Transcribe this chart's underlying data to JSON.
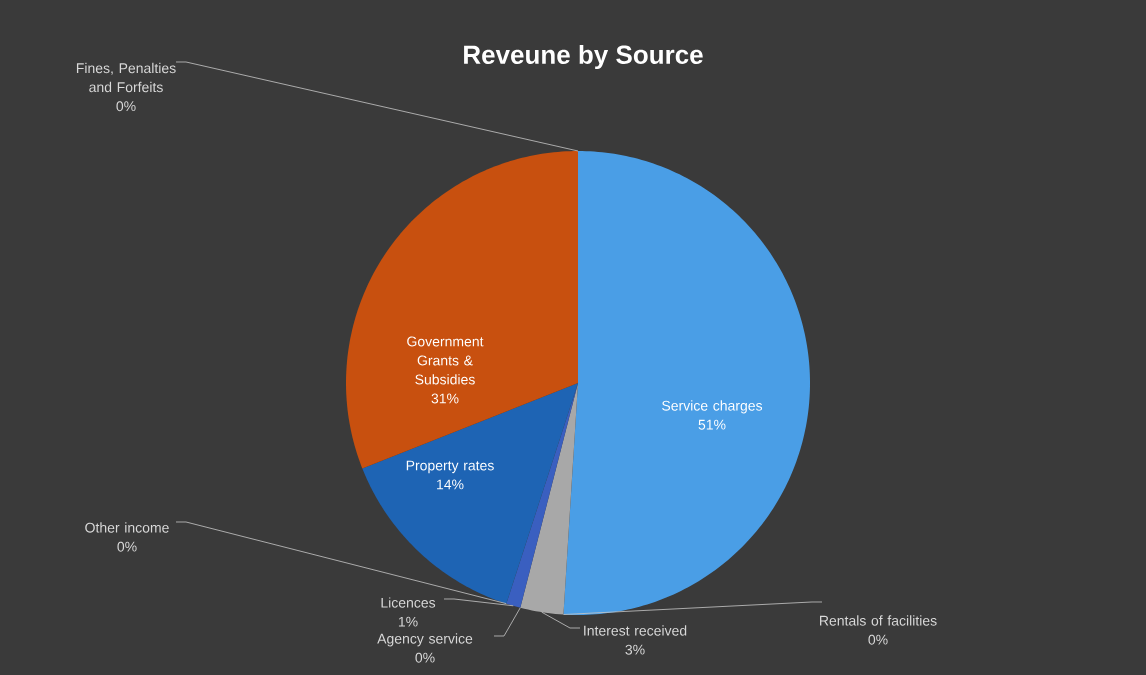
{
  "chart_data": {
    "type": "pie",
    "title": "Reveune by Source",
    "categories": [
      "Service charges",
      "Rentals of facilities",
      "Interest received",
      "Agency service",
      "Licences",
      "Other income",
      "Property rates",
      "Government Grants & Subsidies",
      "Fines, Penalties and Forfeits"
    ],
    "values": [
      51,
      0,
      3,
      0,
      1,
      0,
      14,
      31,
      0
    ],
    "value_labels": [
      "51%",
      "0%",
      "3%",
      "0%",
      "1%",
      "0%",
      "14%",
      "31%",
      "0%"
    ],
    "colors": [
      "#4a9ee6",
      "#9e480e",
      "#a8a8a8",
      "#264478",
      "#3a5fc0",
      "#5aa02c",
      "#1e64b4",
      "#c8500f",
      "#ffc000"
    ]
  }
}
